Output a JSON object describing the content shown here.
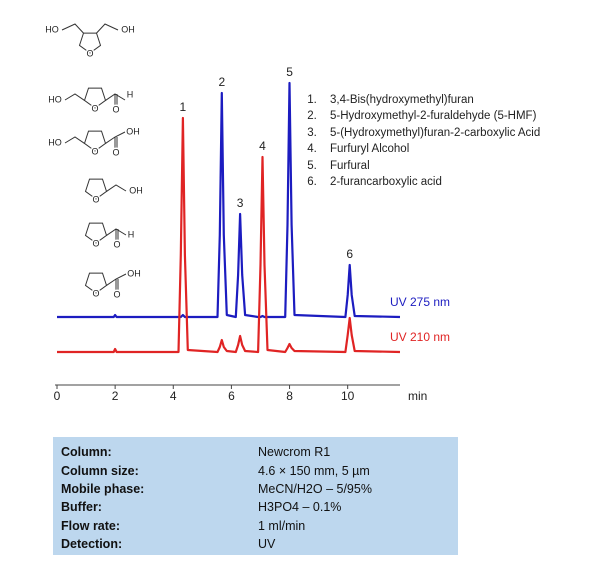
{
  "chart_data": {
    "type": "line",
    "x": [
      0,
      1.95,
      2.0,
      2.05,
      4.18,
      4.26,
      4.33,
      4.4,
      4.5,
      5.52,
      5.6,
      5.67,
      5.74,
      5.84,
      6.15,
      6.23,
      6.3,
      6.37,
      6.47,
      6.92,
      7.0,
      7.07,
      7.14,
      7.24,
      7.85,
      7.93,
      8.0,
      8.07,
      8.17,
      9.92,
      10.0,
      10.07,
      10.14,
      10.24,
      11.8
    ],
    "series": [
      {
        "name": "UV 275 nm",
        "color": "#1c1cc0",
        "values": [
          68,
          68,
          70,
          68,
          68,
          68,
          70,
          68,
          68,
          68,
          150,
          292,
          150,
          70,
          68,
          110,
          171,
          110,
          70,
          68,
          68,
          69,
          68,
          68,
          68,
          160,
          302,
          160,
          70,
          68,
          90,
          120,
          90,
          69,
          68
        ]
      },
      {
        "name": "UV 210 nm",
        "color": "#e02424",
        "values": [
          33,
          33,
          36,
          33,
          33,
          130,
          267,
          130,
          35,
          33,
          38,
          45,
          38,
          34,
          33,
          40,
          49,
          40,
          34,
          33,
          120,
          228,
          120,
          35,
          33,
          37,
          41,
          37,
          34,
          33,
          50,
          67,
          50,
          34,
          33
        ]
      }
    ],
    "xlim": [
      0,
      11.8
    ],
    "xticks": [
      0,
      2,
      4,
      6,
      8,
      10
    ],
    "xlabel": "min",
    "ylim": [
      0,
      310
    ],
    "peak_labels": [
      {
        "text": "1",
        "x": 4.33
      },
      {
        "text": "2",
        "x": 5.67
      },
      {
        "text": "3",
        "x": 6.3
      },
      {
        "text": "4",
        "x": 7.07
      },
      {
        "text": "5",
        "x": 8.0
      },
      {
        "text": "6",
        "x": 10.07
      }
    ],
    "compounds": [
      "3,4-Bis(hydroxymethyl)furan",
      "5-Hydroxymethyl-2-furaldehyde (5-HMF)",
      "5-(Hydroxymethyl)furan-2-carboxylic Acid",
      "Furfuryl Alcohol",
      "Furfural",
      "2-furancarboxylic acid"
    ],
    "structures": [
      [
        "HO",
        "OH",
        "O"
      ],
      [
        "HO",
        "O",
        "H",
        "O"
      ],
      [
        "HO",
        "O",
        "OH",
        "O"
      ],
      [
        "O",
        "OH"
      ],
      [
        "O",
        "H",
        "O"
      ],
      [
        "O",
        "OH",
        "O"
      ]
    ]
  },
  "table": {
    "rows": [
      [
        "Column:",
        "Newcrom R1"
      ],
      [
        "Column size:",
        "4.6 × 150 mm, 5 µm"
      ],
      [
        "Mobile phase:",
        "MeCN/H2O – 5/95%"
      ],
      [
        "Buffer:",
        "H3PO4 – 0.1%"
      ],
      [
        "Flow rate:",
        "1 ml/min"
      ],
      [
        "Detection:",
        "UV"
      ]
    ]
  }
}
